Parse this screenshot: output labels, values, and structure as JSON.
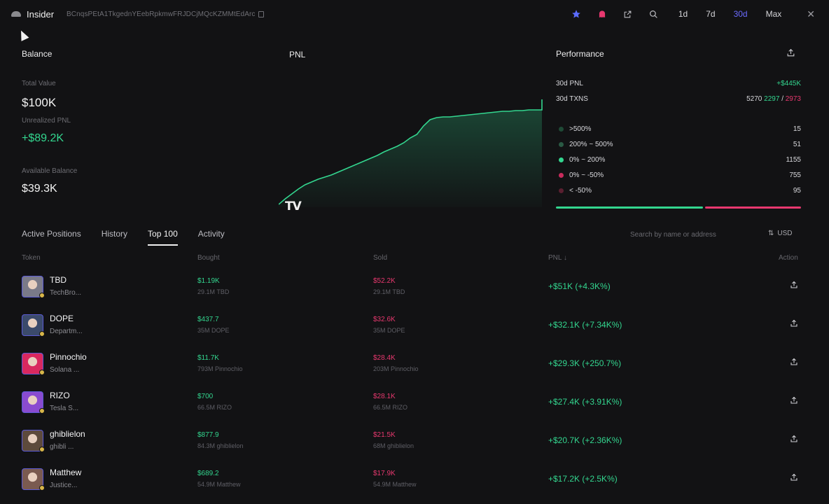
{
  "header": {
    "app_title": "Insider",
    "address": "BCnqsPEtA1TkgednYEebRpkmwFRJDCjMQcKZMMtEdArc",
    "timeframes": [
      "1d",
      "7d",
      "30d",
      "Max"
    ],
    "active_timeframe": "30d",
    "accent": "#6b6bff"
  },
  "balance": {
    "title": "Balance",
    "total_value_label": "Total Value",
    "total_value": "$100K",
    "unrealized_pnl_label": "Unrealized PNL",
    "unrealized_pnl": "+$89.2K",
    "available_label": "Available Balance",
    "available": "$39.3K"
  },
  "pnl": {
    "title": "PNL",
    "watermark": "TV"
  },
  "chart_data": {
    "type": "area",
    "title": "PNL",
    "xlabel": "",
    "ylabel": "",
    "x": [
      0,
      1,
      2,
      3,
      4,
      5,
      6,
      7,
      8,
      9,
      10,
      11,
      12,
      13,
      14,
      15,
      16,
      17,
      18,
      19,
      20,
      21,
      22,
      23,
      24,
      25,
      26,
      27,
      28,
      29,
      30,
      31,
      32,
      33,
      34,
      35,
      36,
      37,
      38,
      39,
      40
    ],
    "values": [
      0,
      8,
      15,
      22,
      28,
      32,
      36,
      39,
      42,
      46,
      50,
      54,
      58,
      62,
      66,
      70,
      75,
      79,
      83,
      88,
      95,
      100,
      112,
      121,
      124,
      125,
      125,
      126,
      127,
      128,
      129,
      130,
      131,
      132,
      133,
      133,
      134,
      134,
      135,
      135,
      150
    ],
    "grid": false,
    "color": "#33d68f"
  },
  "performance": {
    "title": "Performance",
    "pnl_label": "30d PNL",
    "pnl_value": "+$445K",
    "txns_label": "30d TXNS",
    "txns_total": "5270",
    "txns_buy": "2297",
    "txns_sep": "/",
    "txns_sell": "2973",
    "distribution": [
      {
        "label": ">500%",
        "count": "15",
        "color": "#1f4a36"
      },
      {
        "label": "200% ~ 500%",
        "count": "51",
        "color": "#2a5a44"
      },
      {
        "label": "0% ~ 200%",
        "count": "1155",
        "color": "#33d68f"
      },
      {
        "label": "0% ~ -50%",
        "count": "755",
        "color": "#c92b5c"
      },
      {
        "label": "< -50%",
        "count": "95",
        "color": "#5a1f30"
      }
    ],
    "win_fraction": 0.6
  },
  "tabs": [
    "Active Positions",
    "History",
    "Top 100",
    "Activity"
  ],
  "active_tab": "Top 100",
  "search": {
    "placeholder": "Search by name or address"
  },
  "currency": "USD",
  "table": {
    "headers": {
      "token": "Token",
      "bought": "Bought",
      "sold": "Sold",
      "pnl": "PNL ↓",
      "action": "Action"
    },
    "rows": [
      {
        "name": "TBD",
        "sub": "TechBro...",
        "bought": "$1.19K",
        "bought_sub": "29.1M TBD",
        "sold": "$52.2K",
        "sold_sub": "29.1M TBD",
        "pnl": "+$51K (+4.3K%)",
        "avatar": "#7a7a88"
      },
      {
        "name": "DOPE",
        "sub": "Departm...",
        "bought": "$437.7",
        "bought_sub": "35M DOPE",
        "sold": "$32.6K",
        "sold_sub": "35M DOPE",
        "pnl": "+$32.1K (+7.34K%)",
        "avatar": "#3b4a6b"
      },
      {
        "name": "Pinnochio",
        "sub": "Solana ...",
        "bought": "$11.7K",
        "bought_sub": "793M Pinnochio",
        "sold": "$28.4K",
        "sold_sub": "203M Pinnochio",
        "pnl": "+$29.3K (+250.7%)",
        "avatar": "#d9285f"
      },
      {
        "name": "RIZO",
        "sub": "Tesla S...",
        "bought": "$700",
        "bought_sub": "66.5M RIZO",
        "sold": "$28.1K",
        "sold_sub": "66.5M RIZO",
        "pnl": "+$27.4K (+3.91K%)",
        "avatar": "#8a4bd0"
      },
      {
        "name": "ghiblielon",
        "sub": "ghibli ...",
        "bought": "$877.9",
        "bought_sub": "84.3M ghiblielon",
        "sold": "$21.5K",
        "sold_sub": "68M ghiblielon",
        "pnl": "+$20.7K (+2.36K%)",
        "avatar": "#5d4a3c"
      },
      {
        "name": "Matthew",
        "sub": "Justice...",
        "bought": "$689.2",
        "bought_sub": "54.9M Matthew",
        "sold": "$17.9K",
        "sold_sub": "54.9M Matthew",
        "pnl": "+$17.2K (+2.5K%)",
        "avatar": "#7a5a50"
      }
    ]
  }
}
